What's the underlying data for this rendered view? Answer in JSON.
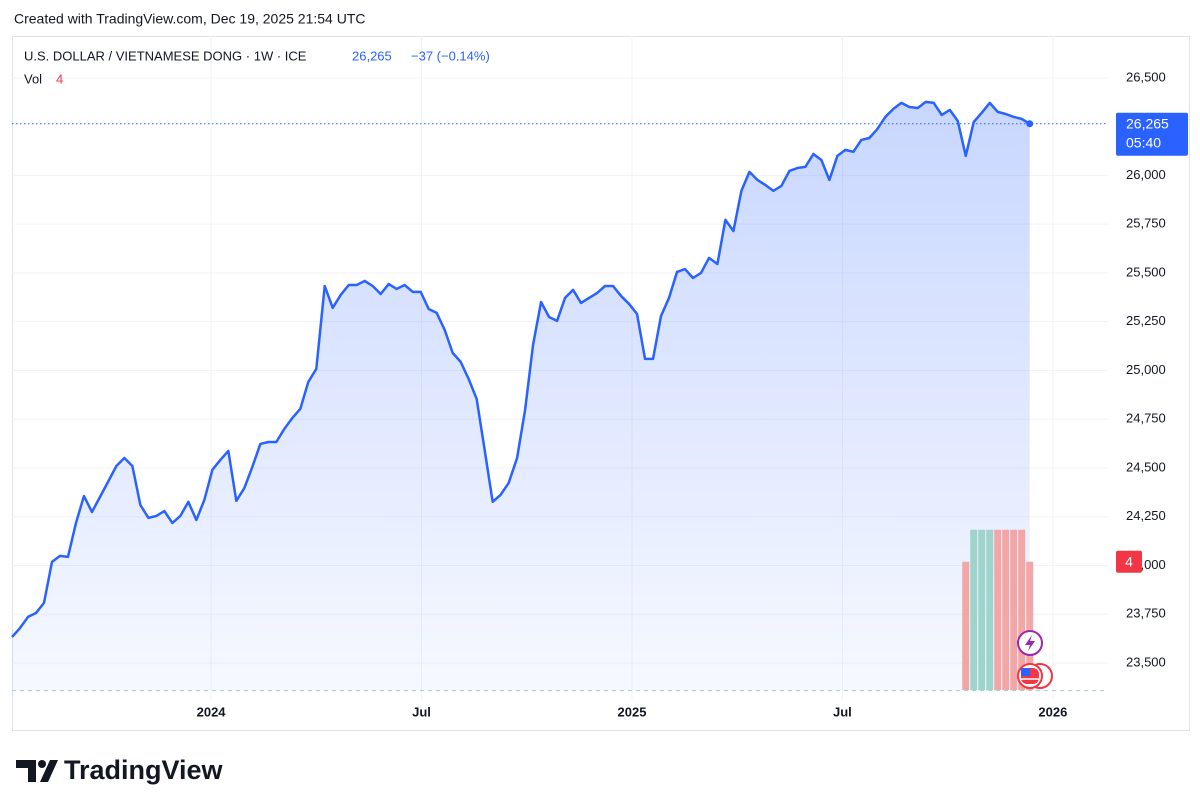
{
  "header": "Created with TradingView.com, Dec 19, 2025 21:54 UTC",
  "footer": "TradingView",
  "chart_data": {
    "type": "line",
    "title": "U.S. DOLLAR / VIETNAMESE DONG · 1W · ICE",
    "last_label": "26,265",
    "change_label": "−37 (−0.14%)",
    "countdown": "05:40",
    "color": "#2962ff",
    "grid": true,
    "x": [
      2023.527,
      2023.546,
      2023.565,
      2023.584,
      2023.603,
      2023.622,
      2023.641,
      2023.66,
      2023.679,
      2023.698,
      2023.717,
      2023.736,
      2023.755,
      2023.775,
      2023.794,
      2023.813,
      2023.832,
      2023.851,
      2023.87,
      2023.889,
      2023.908,
      2023.927,
      2023.946,
      2023.965,
      2023.984,
      2024.003,
      2024.022,
      2024.041,
      2024.06,
      2024.079,
      2024.098,
      2024.117,
      2024.136,
      2024.155,
      2024.174,
      2024.193,
      2024.212,
      2024.231,
      2024.25,
      2024.27,
      2024.289,
      2024.308,
      2024.327,
      2024.346,
      2024.365,
      2024.384,
      2024.403,
      2024.422,
      2024.441,
      2024.46,
      2024.479,
      2024.498,
      2024.517,
      2024.536,
      2024.555,
      2024.574,
      2024.593,
      2024.612,
      2024.631,
      2024.65,
      2024.669,
      2024.688,
      2024.707,
      2024.727,
      2024.746,
      2024.765,
      2024.784,
      2024.803,
      2024.822,
      2024.841,
      2024.86,
      2024.879,
      2024.898,
      2024.917,
      2024.936,
      2024.955,
      2024.974,
      2024.993,
      2025.012,
      2025.031,
      2025.05,
      2025.069,
      2025.088,
      2025.107,
      2025.126,
      2025.145,
      2025.164,
      2025.183,
      2025.203,
      2025.222,
      2025.241,
      2025.26,
      2025.279,
      2025.298,
      2025.317,
      2025.336,
      2025.355,
      2025.374,
      2025.393,
      2025.412,
      2025.431,
      2025.45,
      2025.469,
      2025.488,
      2025.507,
      2025.526,
      2025.545,
      2025.564,
      2025.583,
      2025.602,
      2025.621,
      2025.64,
      2025.659,
      2025.679,
      2025.698,
      2025.717,
      2025.736,
      2025.755,
      2025.774,
      2025.793,
      2025.812,
      2025.831,
      2025.85,
      2025.869,
      2025.888,
      2025.907,
      2025.926,
      2025.945
    ],
    "values": [
      23633,
      23679,
      23736,
      23756,
      23808,
      24018,
      24049,
      24044,
      24218,
      24356,
      24274,
      24351,
      24428,
      24510,
      24551,
      24510,
      24310,
      24244,
      24254,
      24279,
      24218,
      24254,
      24326,
      24233,
      24336,
      24490,
      24541,
      24587,
      24331,
      24397,
      24505,
      24623,
      24633,
      24633,
      24700,
      24756,
      24803,
      24941,
      25008,
      25433,
      25321,
      25387,
      25438,
      25438,
      25459,
      25433,
      25392,
      25443,
      25418,
      25438,
      25403,
      25403,
      25315,
      25295,
      25208,
      25090,
      25044,
      24956,
      24854,
      24592,
      24326,
      24362,
      24423,
      24551,
      24797,
      25131,
      25351,
      25274,
      25254,
      25372,
      25413,
      25346,
      25372,
      25397,
      25433,
      25433,
      25382,
      25341,
      25290,
      25059,
      25059,
      25279,
      25372,
      25505,
      25520,
      25474,
      25500,
      25577,
      25546,
      25772,
      25715,
      25921,
      26018,
      25977,
      25951,
      25921,
      25946,
      26023,
      26038,
      26044,
      26110,
      26079,
      25977,
      26100,
      26131,
      26121,
      26182,
      26192,
      26238,
      26300,
      26341,
      26372,
      26351,
      26346,
      26377,
      26372,
      26310,
      26336,
      26280,
      26100,
      26274,
      26321,
      26372,
      26326,
      26315,
      26300,
      26290,
      26265
    ],
    "xlim": [
      2023.527,
      2026.131
    ],
    "ylim": [
      23310,
      26715
    ],
    "xticks": [
      {
        "value": 2024,
        "label": "2024"
      },
      {
        "value": 2024.5,
        "label": "Jul"
      },
      {
        "value": 2025,
        "label": "2025"
      },
      {
        "value": 2025.5,
        "label": "Jul"
      },
      {
        "value": 2026,
        "label": "2026"
      }
    ],
    "yticks": [
      {
        "value": 23500,
        "label": "23,500"
      },
      {
        "value": 23750,
        "label": "23,750"
      },
      {
        "value": 24000,
        "label": "24,000"
      },
      {
        "value": 24250,
        "label": "24,250"
      },
      {
        "value": 24500,
        "label": "24,500"
      },
      {
        "value": 24750,
        "label": "24,750"
      },
      {
        "value": 25000,
        "label": "25,000"
      },
      {
        "value": 25250,
        "label": "25,250"
      },
      {
        "value": 25500,
        "label": "25,500"
      },
      {
        "value": 25750,
        "label": "25,750"
      },
      {
        "value": 26000,
        "label": "26,000"
      },
      {
        "value": 26500,
        "label": "26,500"
      }
    ],
    "volume": {
      "name": "Vol",
      "up_color": "#9fd4cc",
      "down_color": "#f2a6a5",
      "ylim": [
        0,
        20.4
      ],
      "values": [
        0,
        0,
        0,
        0,
        0,
        0,
        0,
        0,
        0,
        0,
        0,
        0,
        0,
        0,
        0,
        0,
        0,
        0,
        0,
        0,
        0,
        0,
        0,
        0,
        0,
        0,
        0,
        0,
        0,
        0,
        0,
        0,
        0,
        0,
        0,
        0,
        0,
        0,
        0,
        0,
        0,
        0,
        0,
        0,
        0,
        0,
        0,
        0,
        0,
        0,
        0,
        0,
        0,
        0,
        0,
        0,
        0,
        0,
        0,
        0,
        0,
        0,
        0,
        0,
        0,
        0,
        0,
        0,
        0,
        0,
        0,
        0,
        0,
        0,
        0,
        0,
        0,
        0,
        0,
        0,
        0,
        0,
        0,
        0,
        0,
        0,
        0,
        0,
        0,
        0,
        0,
        0,
        0,
        0,
        0,
        0,
        0,
        0,
        0,
        0,
        0,
        0,
        0,
        0,
        0,
        0,
        0,
        0,
        0,
        0,
        0,
        0,
        0,
        0,
        0,
        0,
        0,
        0,
        0,
        4,
        5,
        5,
        5,
        5,
        5,
        5,
        5,
        4
      ]
    }
  }
}
